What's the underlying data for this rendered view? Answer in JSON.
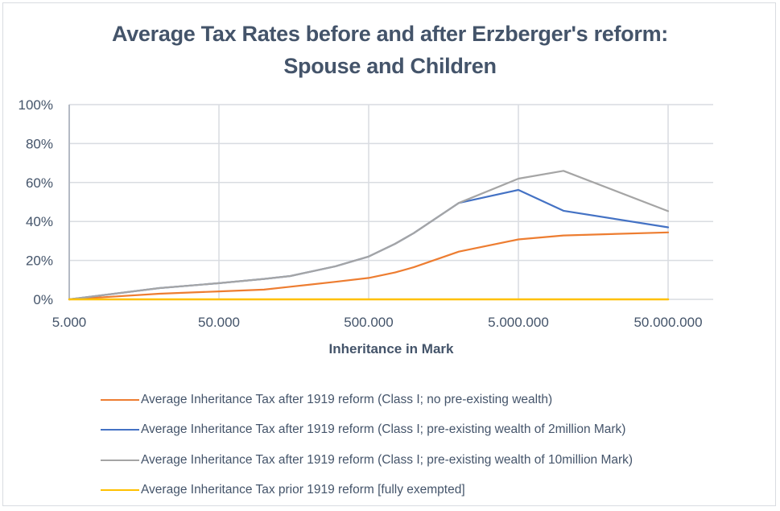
{
  "chart_data": {
    "type": "line",
    "title_line1": "Average Tax Rates before and after Erzberger's reform:",
    "title_line2": "Spouse and Children",
    "xlabel": "Inheritance in Mark",
    "ylabel": "",
    "x_scale": "log10",
    "xlim": [
      5000,
      100000000
    ],
    "ylim": [
      0,
      100
    ],
    "y_unit": "%",
    "grid": true,
    "legend_position": "bottom",
    "x_tick_labels": [
      {
        "value": 5000,
        "label": "5.000"
      },
      {
        "value": 50000,
        "label": "50.000"
      },
      {
        "value": 500000,
        "label": "500.000"
      },
      {
        "value": 5000000,
        "label": "5.000.000"
      },
      {
        "value": 50000000,
        "label": "50.000.000"
      }
    ],
    "y_tick_labels": [
      {
        "value": 0,
        "label": "0%"
      },
      {
        "value": 20,
        "label": "20%"
      },
      {
        "value": 40,
        "label": "40%"
      },
      {
        "value": 60,
        "label": "60%"
      },
      {
        "value": 80,
        "label": "80%"
      },
      {
        "value": 100,
        "label": "100%"
      }
    ],
    "series": [
      {
        "name": "Average Inheritance Tax after 1919 reform (Class I; no pre-existing wealth)",
        "color": "#ED7D31",
        "x": [
          5000,
          20000,
          50000,
          100000,
          150000,
          300000,
          500000,
          750000,
          1000000,
          2000000,
          5000000,
          10000000,
          50000000
        ],
        "values": [
          0,
          2.9,
          4.1,
          5.0,
          6.5,
          9.0,
          11.0,
          13.8,
          16.5,
          24.5,
          30.8,
          32.8,
          34.4
        ]
      },
      {
        "name": "Average Inheritance Tax after 1919 reform (Class I; pre-existing wealth of 2million Mark)",
        "color": "#4472C4",
        "x": [
          5000,
          20000,
          50000,
          100000,
          150000,
          300000,
          500000,
          750000,
          1000000,
          2000000,
          5000000,
          10000000,
          50000000
        ],
        "values": [
          0,
          5.8,
          8.3,
          10.5,
          12.0,
          17.0,
          22.0,
          28.5,
          34.0,
          49.5,
          56.2,
          45.5,
          37.0
        ]
      },
      {
        "name": "Average Inheritance Tax after 1919 reform (Class I; pre-existing wealth of 10million Mark)",
        "color": "#A5A5A5",
        "x": [
          5000,
          20000,
          50000,
          100000,
          150000,
          300000,
          500000,
          750000,
          1000000,
          2000000,
          5000000,
          10000000,
          50000000
        ],
        "values": [
          0,
          5.8,
          8.3,
          10.5,
          12.0,
          17.0,
          22.0,
          28.5,
          34.0,
          49.5,
          62.0,
          66.0,
          45.3
        ]
      },
      {
        "name": "Average Inheritance Tax prior 1919 reform [fully exempted]",
        "color": "#FFC000",
        "x": [
          5000,
          20000,
          50000,
          100000,
          150000,
          300000,
          500000,
          750000,
          1000000,
          2000000,
          5000000,
          10000000,
          50000000
        ],
        "values": [
          0,
          0,
          0,
          0,
          0,
          0,
          0,
          0,
          0,
          0,
          0,
          0,
          0
        ]
      }
    ]
  },
  "colors": {
    "text": "#44546A",
    "gridline": "#D9DCE1",
    "frame": "#D9DCE1"
  }
}
